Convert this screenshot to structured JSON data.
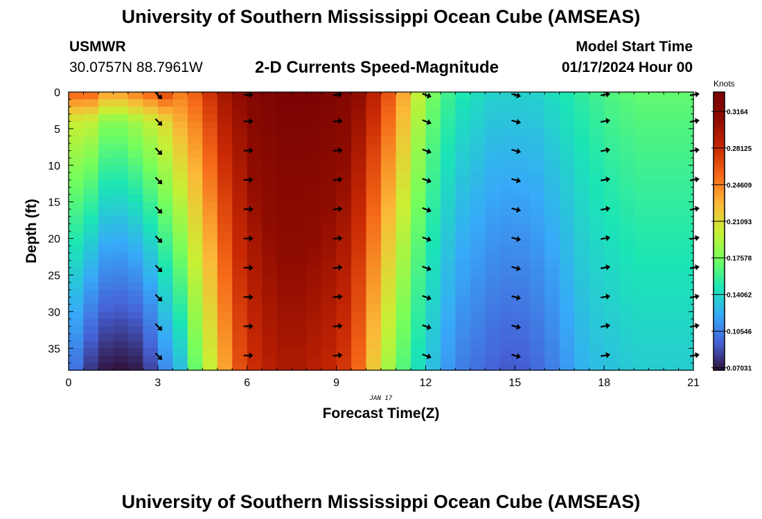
{
  "header": {
    "title": "University of Southern Mississippi Ocean Cube (AMSEAS)",
    "station": "USMWR",
    "coordinates": "30.0757N  88.7961W",
    "subtitle": "2-D Currents Speed-Magnitude",
    "model_start_label": "Model Start Time",
    "model_start_value": "01/17/2024 Hour 00"
  },
  "footer": {
    "title": "University of Southern Mississippi Ocean Cube (AMSEAS)"
  },
  "chart_data": {
    "type": "heatmap",
    "title": "2-D Currents Speed-Magnitude",
    "xlabel": "Forecast Time(Z)",
    "ylabel": "Depth (ft)",
    "date_label": "JAN 17",
    "xlim": [
      0,
      21
    ],
    "ylim": [
      0,
      38
    ],
    "x_ticks": [
      0,
      3,
      6,
      9,
      12,
      15,
      18,
      21
    ],
    "x_tick_labels": [
      "0",
      "3",
      "6",
      "9",
      "12",
      "15",
      "18",
      "21"
    ],
    "y_ticks": [
      0,
      5,
      10,
      15,
      20,
      25,
      30,
      35
    ],
    "y_tick_labels": [
      "0",
      "5",
      "10",
      "15",
      "20",
      "25",
      "30",
      "35"
    ],
    "colorbar": {
      "label": "Knots",
      "min": 0.068,
      "max": 0.335,
      "ticks": [
        0.07031,
        0.10546,
        0.14062,
        0.17578,
        0.21093,
        0.24609,
        0.28125,
        0.3164
      ],
      "tick_labels": [
        "0.07031",
        "0.10546",
        "0.14062",
        "0.17578",
        "0.21093",
        "0.24609",
        "0.28125",
        "0.3164"
      ]
    },
    "speed_profiles": [
      {
        "time": 0,
        "surface": 0.22,
        "bottom": 0.1
      },
      {
        "time": 0.5,
        "surface": 0.22,
        "bottom": 0.08
      },
      {
        "time": 1,
        "surface": 0.2,
        "bottom": 0.07
      },
      {
        "time": 1.5,
        "surface": 0.2,
        "bottom": 0.068
      },
      {
        "time": 2,
        "surface": 0.21,
        "bottom": 0.07
      },
      {
        "time": 2.5,
        "surface": 0.22,
        "bottom": 0.085
      },
      {
        "time": 3,
        "surface": 0.23,
        "bottom": 0.11
      },
      {
        "time": 3.5,
        "surface": 0.25,
        "bottom": 0.13
      },
      {
        "time": 4,
        "surface": 0.26,
        "bottom": 0.17
      },
      {
        "time": 4.5,
        "surface": 0.28,
        "bottom": 0.2
      },
      {
        "time": 5,
        "surface": 0.3,
        "bottom": 0.235
      },
      {
        "time": 5.5,
        "surface": 0.31,
        "bottom": 0.265
      },
      {
        "time": 6,
        "surface": 0.325,
        "bottom": 0.28
      },
      {
        "time": 6.5,
        "surface": 0.33,
        "bottom": 0.29
      },
      {
        "time": 7,
        "surface": 0.335,
        "bottom": 0.295
      },
      {
        "time": 7.5,
        "surface": 0.335,
        "bottom": 0.295
      },
      {
        "time": 8,
        "surface": 0.335,
        "bottom": 0.29
      },
      {
        "time": 8.5,
        "surface": 0.33,
        "bottom": 0.285
      },
      {
        "time": 9,
        "surface": 0.325,
        "bottom": 0.275
      },
      {
        "time": 9.5,
        "surface": 0.31,
        "bottom": 0.255
      },
      {
        "time": 10,
        "surface": 0.29,
        "bottom": 0.22
      },
      {
        "time": 10.5,
        "surface": 0.265,
        "bottom": 0.19
      },
      {
        "time": 11,
        "surface": 0.235,
        "bottom": 0.165
      },
      {
        "time": 11.5,
        "surface": 0.2,
        "bottom": 0.145
      },
      {
        "time": 12,
        "surface": 0.175,
        "bottom": 0.13
      },
      {
        "time": 12.5,
        "surface": 0.16,
        "bottom": 0.115
      },
      {
        "time": 13,
        "surface": 0.15,
        "bottom": 0.105
      },
      {
        "time": 13.5,
        "surface": 0.145,
        "bottom": 0.1
      },
      {
        "time": 14,
        "surface": 0.14,
        "bottom": 0.095
      },
      {
        "time": 14.5,
        "surface": 0.14,
        "bottom": 0.092
      },
      {
        "time": 15,
        "surface": 0.14,
        "bottom": 0.093
      },
      {
        "time": 15.5,
        "surface": 0.14,
        "bottom": 0.098
      },
      {
        "time": 16,
        "surface": 0.145,
        "bottom": 0.105
      },
      {
        "time": 16.5,
        "surface": 0.15,
        "bottom": 0.115
      },
      {
        "time": 17,
        "surface": 0.155,
        "bottom": 0.125
      },
      {
        "time": 17.5,
        "surface": 0.16,
        "bottom": 0.13
      },
      {
        "time": 18,
        "surface": 0.165,
        "bottom": 0.132
      },
      {
        "time": 18.5,
        "surface": 0.168,
        "bottom": 0.135
      },
      {
        "time": 19,
        "surface": 0.17,
        "bottom": 0.137
      },
      {
        "time": 19.5,
        "surface": 0.17,
        "bottom": 0.137
      },
      {
        "time": 20,
        "surface": 0.17,
        "bottom": 0.137
      },
      {
        "time": 20.5,
        "surface": 0.17,
        "bottom": 0.137
      }
    ],
    "vectors": {
      "times": [
        3,
        6,
        9,
        12,
        15,
        18,
        21
      ],
      "depths": [
        0,
        4,
        8,
        12,
        16,
        20,
        24,
        28,
        32,
        36
      ],
      "direction_deg": [
        225,
        180,
        175,
        200,
        195,
        170,
        170
      ],
      "color": "#000000"
    }
  }
}
